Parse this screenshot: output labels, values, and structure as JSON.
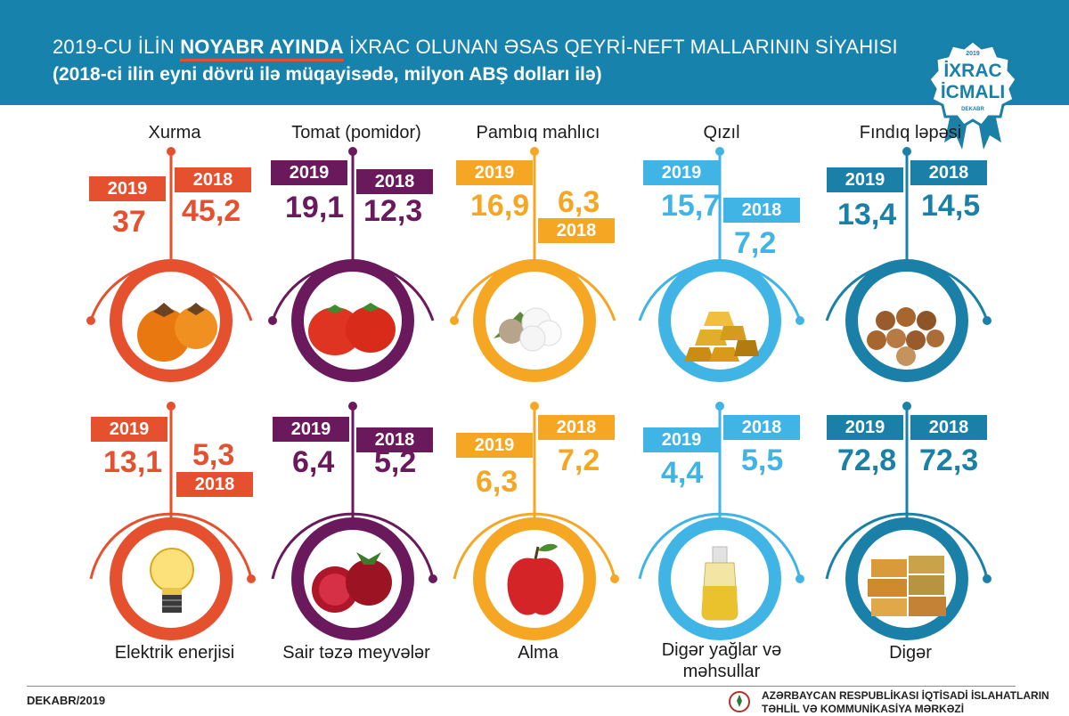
{
  "header": {
    "title_part1": "2019-CU İLİN ",
    "title_highlight": "NOYABR AYINDA",
    "title_part2": " İXRAC OLUNAN ƏSAS QEYRİ-NEFT MALLARININ SİYAHISI",
    "subtitle": "(2018-ci ilin eyni dövrü ilə müqayisədə, milyon ABŞ dolları ilə)"
  },
  "badge": {
    "year": "2019",
    "line1": "İXRAC",
    "line2": "İCMALI",
    "month": "DEKABR"
  },
  "colors": {
    "header_bg": "#1782ac",
    "highlight": "#e5502f",
    "red": "#e5502f",
    "purple": "#6a1a5c",
    "orange": "#f5a623",
    "light_blue": "#3fb4e5",
    "teal": "#1a80a8"
  },
  "chart_data": {
    "type": "comparison",
    "unit": "milyon ABŞ dolları",
    "series_names": [
      "2019",
      "2018"
    ],
    "items": [
      {
        "name": "Xurma",
        "v2019": "37",
        "v2018": "45,2",
        "icon": "persimmon-icon"
      },
      {
        "name": "Tomat (pomidor)",
        "v2019": "19,1",
        "v2018": "12,3",
        "icon": "tomato-icon"
      },
      {
        "name": "Pambıq mahlıcı",
        "v2019": "16,9",
        "v2018": "6,3",
        "icon": "cotton-icon"
      },
      {
        "name": "Qızıl",
        "v2019": "15,7",
        "v2018": "7,2",
        "icon": "gold-bars-icon"
      },
      {
        "name": "Fındıq ləpəsi",
        "v2019": "13,4",
        "v2018": "14,5",
        "icon": "hazelnut-icon"
      },
      {
        "name": "Elektrik enerjisi",
        "v2019": "13,1",
        "v2018": "5,3",
        "icon": "light-bulb-icon"
      },
      {
        "name": "Sair təzə meyvələr",
        "v2019": "6,4",
        "v2018": "5,2",
        "icon": "pomegranate-icon"
      },
      {
        "name": "Alma",
        "v2019": "6,3",
        "v2018": "7,2",
        "icon": "apple-icon"
      },
      {
        "name": "Digər yağlar və məhsullar",
        "v2019": "4,4",
        "v2018": "5,5",
        "icon": "oil-bottle-icon"
      },
      {
        "name": "Digər",
        "v2019": "72,8",
        "v2018": "72,3",
        "icon": "containers-icon"
      }
    ]
  },
  "footer": {
    "date": "DEKABR/2019",
    "org_line1": "AZƏRBAYCAN RESPUBLİKASI İQTİSADİ İSLAHATLARIN",
    "org_line2": "TƏHLİL VƏ KOMMUNİKASİYA MƏRKƏZİ"
  }
}
